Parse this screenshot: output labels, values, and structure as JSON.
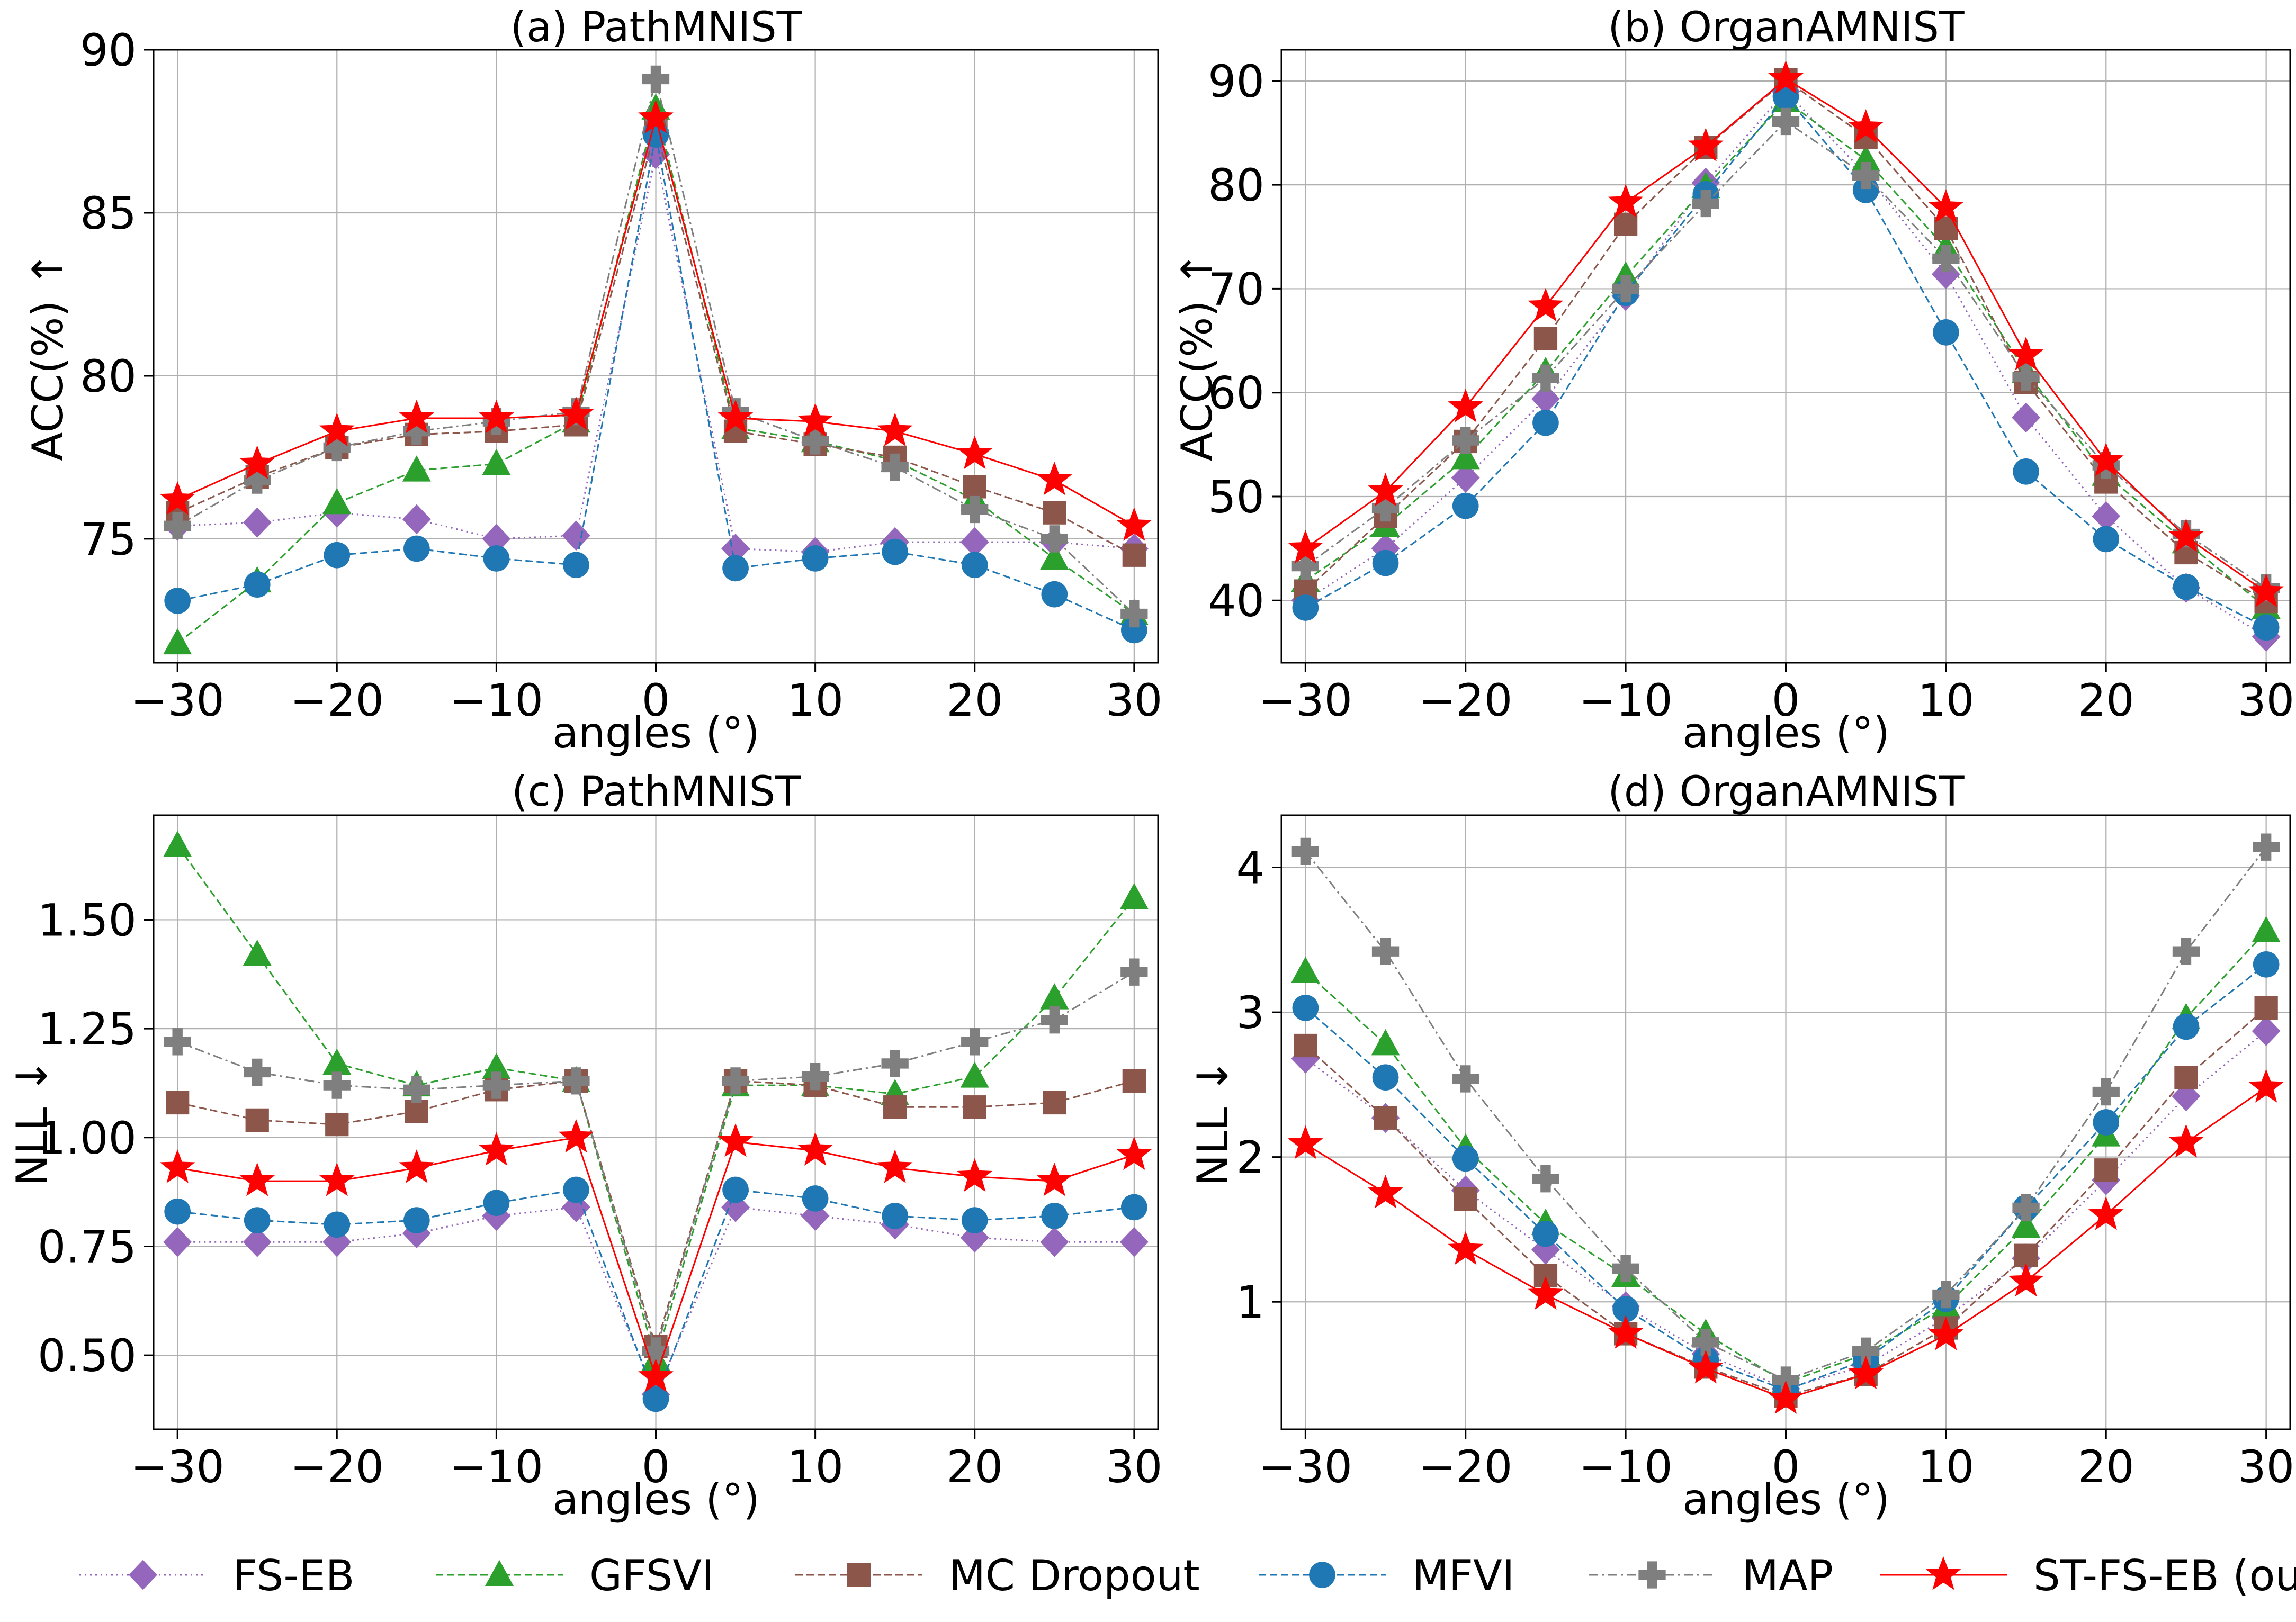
{
  "figure": {
    "x_values": [
      -30,
      -25,
      -20,
      -15,
      -10,
      -5,
      0,
      5,
      10,
      15,
      20,
      25,
      30
    ],
    "xlabel": "angles (°)"
  },
  "legend": [
    {
      "key": "fseb",
      "label": "FS-EB"
    },
    {
      "key": "gfsvi",
      "label": "GFSVI"
    },
    {
      "key": "mcd",
      "label": "MC Dropout"
    },
    {
      "key": "mfvi",
      "label": "MFVI"
    },
    {
      "key": "map",
      "label": "MAP"
    },
    {
      "key": "stfseb",
      "label": "ST-FS-EB (our)"
    }
  ],
  "styles": {
    "fseb": {
      "color": "#9467bd",
      "marker": "diamond",
      "dash": "dotted"
    },
    "gfsvi": {
      "color": "#2ca02c",
      "marker": "triangle",
      "dash": "dashed"
    },
    "mcd": {
      "color": "#8c564b",
      "marker": "square",
      "dash": "dashed"
    },
    "mfvi": {
      "color": "#1f77b4",
      "marker": "circle",
      "dash": "dashed"
    },
    "map": {
      "color": "#7f7f7f",
      "marker": "plus",
      "dash": "dashdot"
    },
    "stfseb": {
      "color": "#ff0000",
      "marker": "star",
      "dash": "solid"
    }
  },
  "chart_data": [
    {
      "type": "line",
      "title": "(a) PathMNIST",
      "xlabel": "angles (°)",
      "ylabel": "ACC(%) ↑",
      "x": [
        -30,
        -25,
        -20,
        -15,
        -10,
        -5,
        0,
        5,
        10,
        15,
        20,
        25,
        30
      ],
      "xlim": [
        -31.5,
        31.5
      ],
      "ylim": [
        71.2,
        90
      ],
      "xticks": [
        -30,
        -20,
        -10,
        0,
        10,
        20,
        30
      ],
      "yticks": [
        75,
        80,
        85,
        90
      ],
      "xtick_labels": [
        "−30",
        "−20",
        "−10",
        "0",
        "10",
        "20",
        "30"
      ],
      "ytick_labels": [
        "75",
        "80",
        "85",
        "90"
      ],
      "grid": true,
      "series": [
        {
          "key": "fseb",
          "name": "FS-EB",
          "values": [
            75.4,
            75.5,
            75.8,
            75.6,
            75.0,
            75.1,
            86.8,
            74.7,
            74.6,
            74.9,
            74.9,
            74.9,
            74.7
          ]
        },
        {
          "key": "gfsvi",
          "name": "GFSVI",
          "values": [
            71.8,
            73.7,
            76.1,
            77.1,
            77.3,
            78.6,
            88.2,
            78.4,
            78.0,
            77.4,
            76.2,
            74.4,
            72.7
          ]
        },
        {
          "key": "mcd",
          "name": "MC Dropout",
          "values": [
            75.8,
            76.9,
            77.8,
            78.2,
            78.3,
            78.5,
            87.6,
            78.3,
            77.9,
            77.5,
            76.6,
            75.8,
            74.5
          ]
        },
        {
          "key": "mfvi",
          "name": "MFVI",
          "values": [
            73.1,
            73.6,
            74.5,
            74.7,
            74.4,
            74.2,
            87.4,
            74.1,
            74.4,
            74.6,
            74.2,
            73.3,
            72.2
          ]
        },
        {
          "key": "map",
          "name": "MAP",
          "values": [
            75.4,
            76.8,
            77.8,
            78.3,
            78.6,
            78.9,
            89.1,
            78.9,
            78.0,
            77.2,
            75.9,
            75.0,
            72.7
          ]
        },
        {
          "key": "stfseb",
          "name": "ST-FS-EB (our)",
          "values": [
            76.2,
            77.3,
            78.3,
            78.7,
            78.7,
            78.8,
            87.9,
            78.7,
            78.6,
            78.3,
            77.6,
            76.8,
            75.4
          ]
        }
      ]
    },
    {
      "type": "line",
      "title": "(b) OrganAMNIST",
      "xlabel": "angles (°)",
      "ylabel": "ACC(%) ↑",
      "x": [
        -30,
        -25,
        -20,
        -15,
        -10,
        -5,
        0,
        5,
        10,
        15,
        20,
        25,
        30
      ],
      "xlim": [
        -31.5,
        31.5
      ],
      "ylim": [
        34,
        93
      ],
      "xticks": [
        -30,
        -20,
        -10,
        0,
        10,
        20,
        30
      ],
      "yticks": [
        40,
        50,
        60,
        70,
        80,
        90
      ],
      "xtick_labels": [
        "−30",
        "−20",
        "−10",
        "0",
        "10",
        "20",
        "30"
      ],
      "ytick_labels": [
        "40",
        "50",
        "60",
        "70",
        "80",
        "90"
      ],
      "grid": true,
      "series": [
        {
          "key": "fseb",
          "name": "FS-EB",
          "values": [
            40.0,
            45.0,
            51.8,
            59.4,
            69.3,
            80.2,
            89.0,
            81.0,
            71.4,
            57.6,
            48.1,
            41.2,
            36.5
          ]
        },
        {
          "key": "gfsvi",
          "name": "GFSVI",
          "values": [
            41.9,
            47.2,
            53.7,
            62.0,
            71.2,
            79.8,
            88.1,
            82.4,
            73.9,
            62.0,
            52.1,
            45.6,
            39.3
          ]
        },
        {
          "key": "mcd",
          "name": "MC Dropout",
          "values": [
            40.9,
            48.1,
            55.3,
            65.2,
            76.2,
            83.6,
            90.1,
            84.6,
            75.8,
            61.0,
            51.4,
            44.6,
            39.9
          ]
        },
        {
          "key": "mfvi",
          "name": "MFVI",
          "values": [
            39.3,
            43.6,
            49.1,
            57.1,
            69.6,
            79.1,
            88.5,
            79.5,
            65.8,
            52.4,
            45.9,
            41.3,
            37.4
          ]
        },
        {
          "key": "map",
          "name": "MAP",
          "values": [
            43.3,
            48.9,
            55.4,
            61.4,
            70.0,
            78.2,
            86.1,
            80.9,
            72.9,
            61.5,
            53.0,
            46.4,
            41.2
          ]
        },
        {
          "key": "stfseb",
          "name": "ST-FS-EB (our)",
          "values": [
            45.0,
            50.5,
            58.6,
            68.3,
            78.3,
            83.7,
            90.2,
            85.5,
            77.8,
            63.6,
            53.4,
            46.1,
            40.8
          ]
        }
      ]
    },
    {
      "type": "line",
      "title": "(c) PathMNIST",
      "xlabel": "angles (°)",
      "ylabel": "NLL ↓",
      "x": [
        -30,
        -25,
        -20,
        -15,
        -10,
        -5,
        0,
        5,
        10,
        15,
        20,
        25,
        30
      ],
      "xlim": [
        -31.5,
        31.5
      ],
      "ylim": [
        0.33,
        1.74
      ],
      "xticks": [
        -30,
        -20,
        -10,
        0,
        10,
        20,
        30
      ],
      "yticks": [
        0.5,
        0.75,
        1.0,
        1.25,
        1.5
      ],
      "xtick_labels": [
        "−30",
        "−20",
        "−10",
        "0",
        "10",
        "20",
        "30"
      ],
      "ytick_labels": [
        "0.50",
        "0.75",
        "1.00",
        "1.25",
        "1.50"
      ],
      "grid": true,
      "series": [
        {
          "key": "fseb",
          "name": "FS-EB",
          "values": [
            0.76,
            0.76,
            0.76,
            0.78,
            0.82,
            0.84,
            0.41,
            0.84,
            0.82,
            0.8,
            0.77,
            0.76,
            0.76
          ]
        },
        {
          "key": "gfsvi",
          "name": "GFSVI",
          "values": [
            1.67,
            1.42,
            1.17,
            1.12,
            1.16,
            1.13,
            0.49,
            1.12,
            1.12,
            1.1,
            1.14,
            1.32,
            1.55
          ]
        },
        {
          "key": "mcd",
          "name": "MC Dropout",
          "values": [
            1.08,
            1.04,
            1.03,
            1.06,
            1.11,
            1.13,
            0.52,
            1.13,
            1.12,
            1.07,
            1.07,
            1.08,
            1.13
          ]
        },
        {
          "key": "mfvi",
          "name": "MFVI",
          "values": [
            0.83,
            0.81,
            0.8,
            0.81,
            0.85,
            0.88,
            0.4,
            0.88,
            0.86,
            0.82,
            0.81,
            0.82,
            0.84
          ]
        },
        {
          "key": "map",
          "name": "MAP",
          "values": [
            1.22,
            1.15,
            1.12,
            1.11,
            1.12,
            1.13,
            0.51,
            1.13,
            1.14,
            1.17,
            1.22,
            1.27,
            1.38
          ]
        },
        {
          "key": "stfseb",
          "name": "ST-FS-EB (our)",
          "values": [
            0.93,
            0.9,
            0.9,
            0.93,
            0.97,
            1.0,
            0.45,
            0.99,
            0.97,
            0.93,
            0.91,
            0.9,
            0.96
          ]
        }
      ]
    },
    {
      "type": "line",
      "title": "(d) OrganAMNIST",
      "xlabel": "angles (°)",
      "ylabel": "NLL ↓",
      "x": [
        -30,
        -25,
        -20,
        -15,
        -10,
        -5,
        0,
        5,
        10,
        15,
        20,
        25,
        30
      ],
      "xlim": [
        -31.5,
        31.5
      ],
      "ylim": [
        0.12,
        4.36
      ],
      "xticks": [
        -30,
        -20,
        -10,
        0,
        10,
        20,
        30
      ],
      "yticks": [
        1,
        2,
        3,
        4
      ],
      "xtick_labels": [
        "−30",
        "−20",
        "−10",
        "0",
        "10",
        "20",
        "30"
      ],
      "ytick_labels": [
        "1",
        "2",
        "3",
        "4"
      ],
      "grid": true,
      "series": [
        {
          "key": "fseb",
          "name": "FS-EB",
          "values": [
            2.68,
            2.27,
            1.77,
            1.36,
            0.97,
            0.64,
            0.4,
            0.56,
            0.89,
            1.3,
            1.84,
            2.42,
            2.87
          ]
        },
        {
          "key": "gfsvi",
          "name": "GFSVI",
          "values": [
            3.28,
            2.78,
            2.06,
            1.54,
            1.18,
            0.78,
            0.44,
            0.64,
            0.97,
            1.52,
            2.15,
            2.96,
            3.56
          ]
        },
        {
          "key": "mcd",
          "name": "MC Dropout",
          "values": [
            2.77,
            2.27,
            1.71,
            1.18,
            0.78,
            0.55,
            0.35,
            0.5,
            0.82,
            1.32,
            1.91,
            2.55,
            3.03
          ]
        },
        {
          "key": "mfvi",
          "name": "MFVI",
          "values": [
            3.03,
            2.55,
            1.99,
            1.47,
            0.95,
            0.6,
            0.39,
            0.6,
            1.02,
            1.65,
            2.24,
            2.9,
            3.33
          ]
        },
        {
          "key": "map",
          "name": "MAP",
          "values": [
            4.11,
            3.42,
            2.54,
            1.85,
            1.23,
            0.72,
            0.46,
            0.66,
            1.05,
            1.65,
            2.45,
            3.42,
            4.14
          ]
        },
        {
          "key": "stfseb",
          "name": "ST-FS-EB (our)",
          "values": [
            2.09,
            1.75,
            1.36,
            1.05,
            0.78,
            0.54,
            0.33,
            0.5,
            0.77,
            1.14,
            1.6,
            2.1,
            2.48
          ]
        }
      ]
    }
  ]
}
